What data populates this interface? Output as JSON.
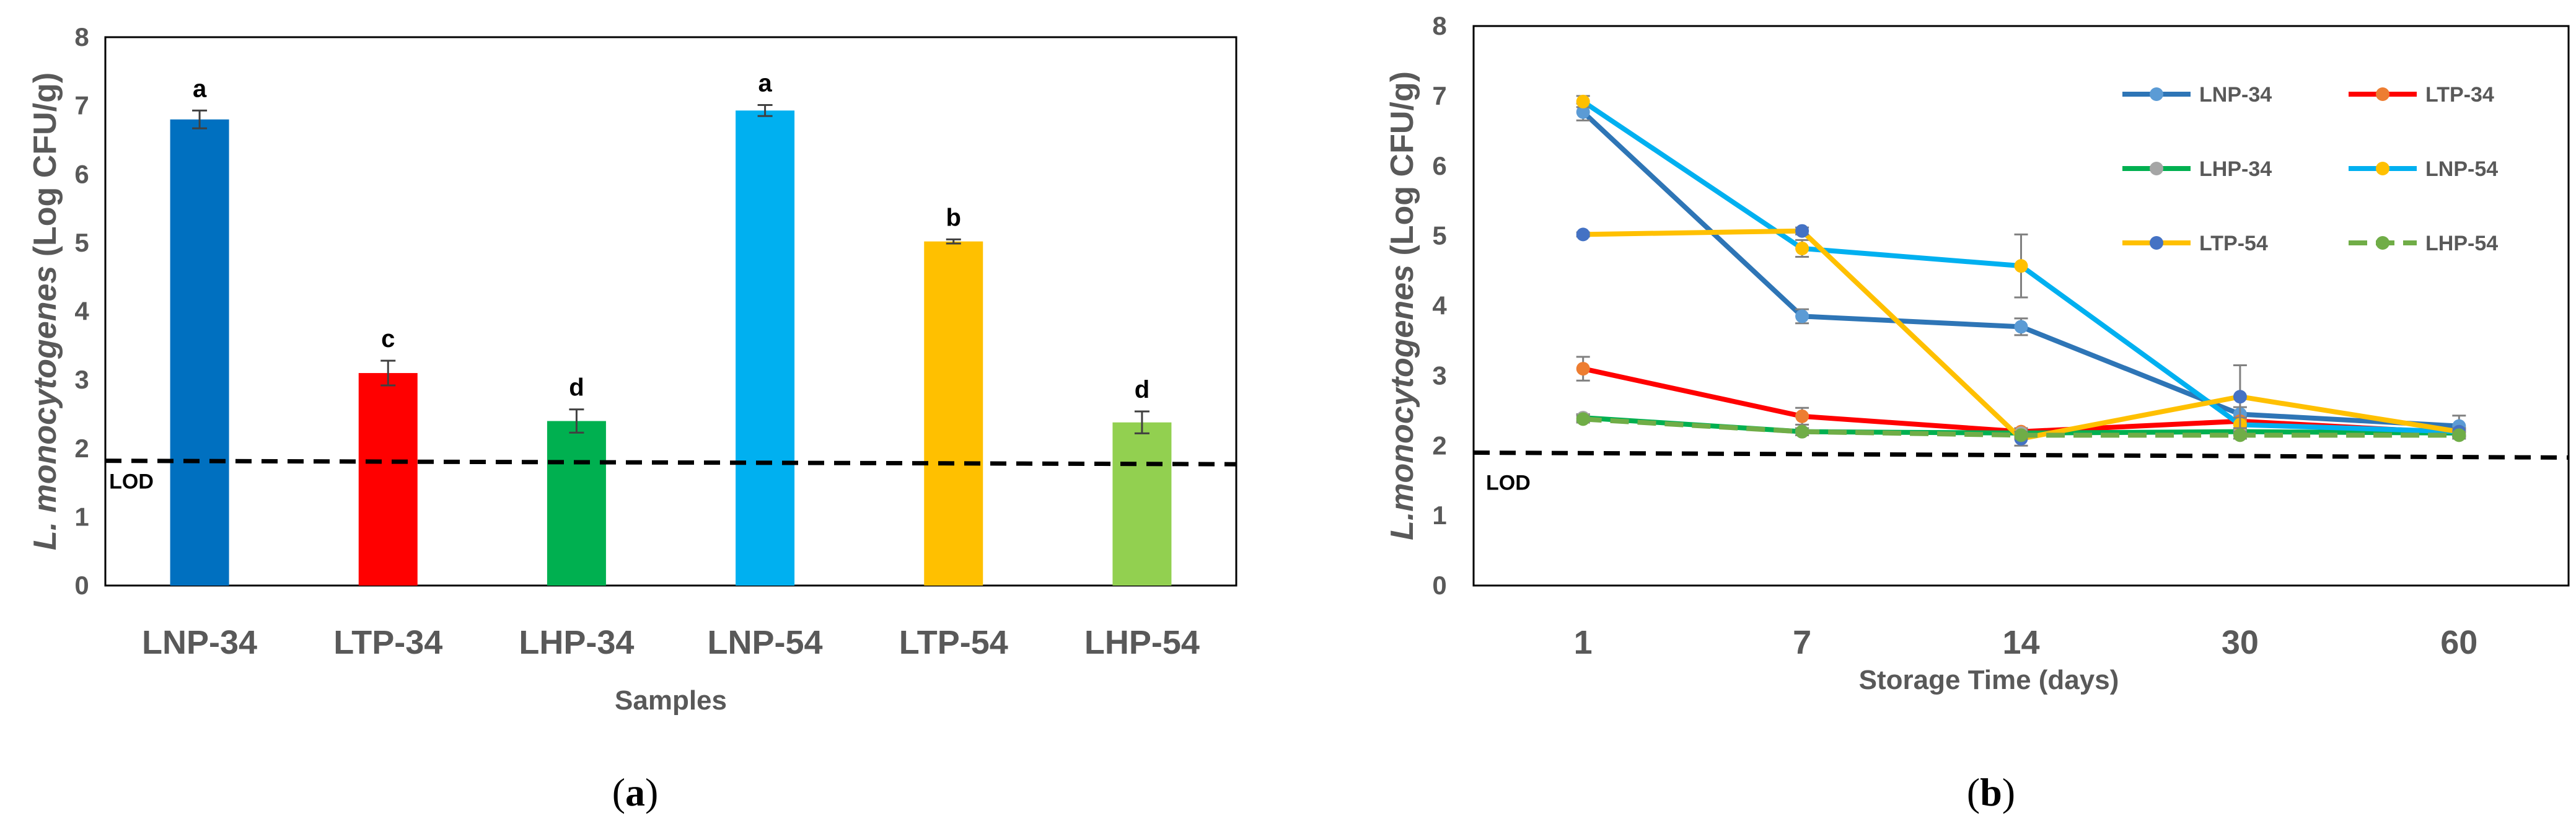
{
  "chart_data": [
    {
      "type": "bar",
      "panel_label": "(a)",
      "panel_letter": "a",
      "xlabel": "Samples",
      "ylabel_italic": "L. monocytogenes",
      "ylabel_rest": "(Log CFU/g)",
      "ylim": [
        0,
        8
      ],
      "yticks": [
        "0",
        "1",
        "2",
        "3",
        "4",
        "5",
        "6",
        "7",
        "8"
      ],
      "categories": [
        "LNP-34",
        "LTP-34",
        "LHP-34",
        "LNP-54",
        "LTP-54",
        "LHP-54"
      ],
      "values": [
        6.8,
        3.1,
        2.4,
        6.93,
        5.02,
        2.38
      ],
      "errors": [
        0.13,
        0.18,
        0.17,
        0.08,
        0.03,
        0.16
      ],
      "significance": [
        "a",
        "c",
        "d",
        "a",
        "b",
        "d"
      ],
      "colors": [
        "#0070C0",
        "#FF0000",
        "#00B050",
        "#00B0F0",
        "#FFC000",
        "#92D050"
      ],
      "lod": {
        "label": "LOD",
        "y_start": 1.82,
        "y_end": 1.77
      }
    },
    {
      "type": "line",
      "panel_label": "(b)",
      "panel_letter": "b",
      "xlabel": "Storage Time (days)",
      "ylabel_italic": "L.monocytogenes",
      "ylabel_rest": "(Log CFU/g)",
      "ylim": [
        0,
        8
      ],
      "yticks": [
        "0",
        "1",
        "2",
        "3",
        "4",
        "5",
        "6",
        "7",
        "8"
      ],
      "categories": [
        "1",
        "7",
        "14",
        "30",
        "60"
      ],
      "lod": {
        "label": "LOD",
        "y_start": 1.9,
        "y_end": 1.83
      },
      "series": [
        {
          "name": "LNP-34",
          "color": "#2E75B6",
          "marker": "#5B9BD5",
          "dashed": false,
          "values": [
            6.77,
            3.85,
            3.7,
            2.45,
            2.28
          ],
          "errors": [
            0.12,
            0.1,
            0.12,
            0.1,
            0.15
          ]
        },
        {
          "name": "LTP-34",
          "color": "#FF0000",
          "marker": "#ED7D31",
          "dashed": false,
          "values": [
            3.1,
            2.42,
            2.2,
            2.35,
            2.18
          ],
          "errors": [
            0.17,
            0.12,
            0.05,
            0.05,
            0.05
          ]
        },
        {
          "name": "LHP-34",
          "color": "#00B050",
          "marker": "#A5A5A5",
          "dashed": false,
          "values": [
            2.4,
            2.2,
            2.18,
            2.2,
            2.18
          ],
          "errors": [
            0.05,
            0.05,
            0.05,
            0.05,
            0.05
          ]
        },
        {
          "name": "LNP-54",
          "color": "#00B0F0",
          "marker": "#FFC000",
          "dashed": false,
          "values": [
            6.92,
            4.82,
            4.57,
            2.3,
            2.2
          ],
          "errors": [
            0.08,
            0.12,
            0.45,
            0.1,
            0.05
          ]
        },
        {
          "name": "LTP-54",
          "color": "#FFC000",
          "marker": "#4472C4",
          "dashed": false,
          "values": [
            5.02,
            5.07,
            2.1,
            2.7,
            2.2
          ],
          "errors": [
            0.03,
            0.05,
            0.1,
            0.45,
            0.05
          ]
        },
        {
          "name": "LHP-54",
          "color": "#70AD47",
          "marker": "#70AD47",
          "dashed": true,
          "values": [
            2.38,
            2.2,
            2.15,
            2.15,
            2.15
          ],
          "errors": [
            0.05,
            0.05,
            0.05,
            0.05,
            0.05
          ]
        }
      ]
    }
  ]
}
